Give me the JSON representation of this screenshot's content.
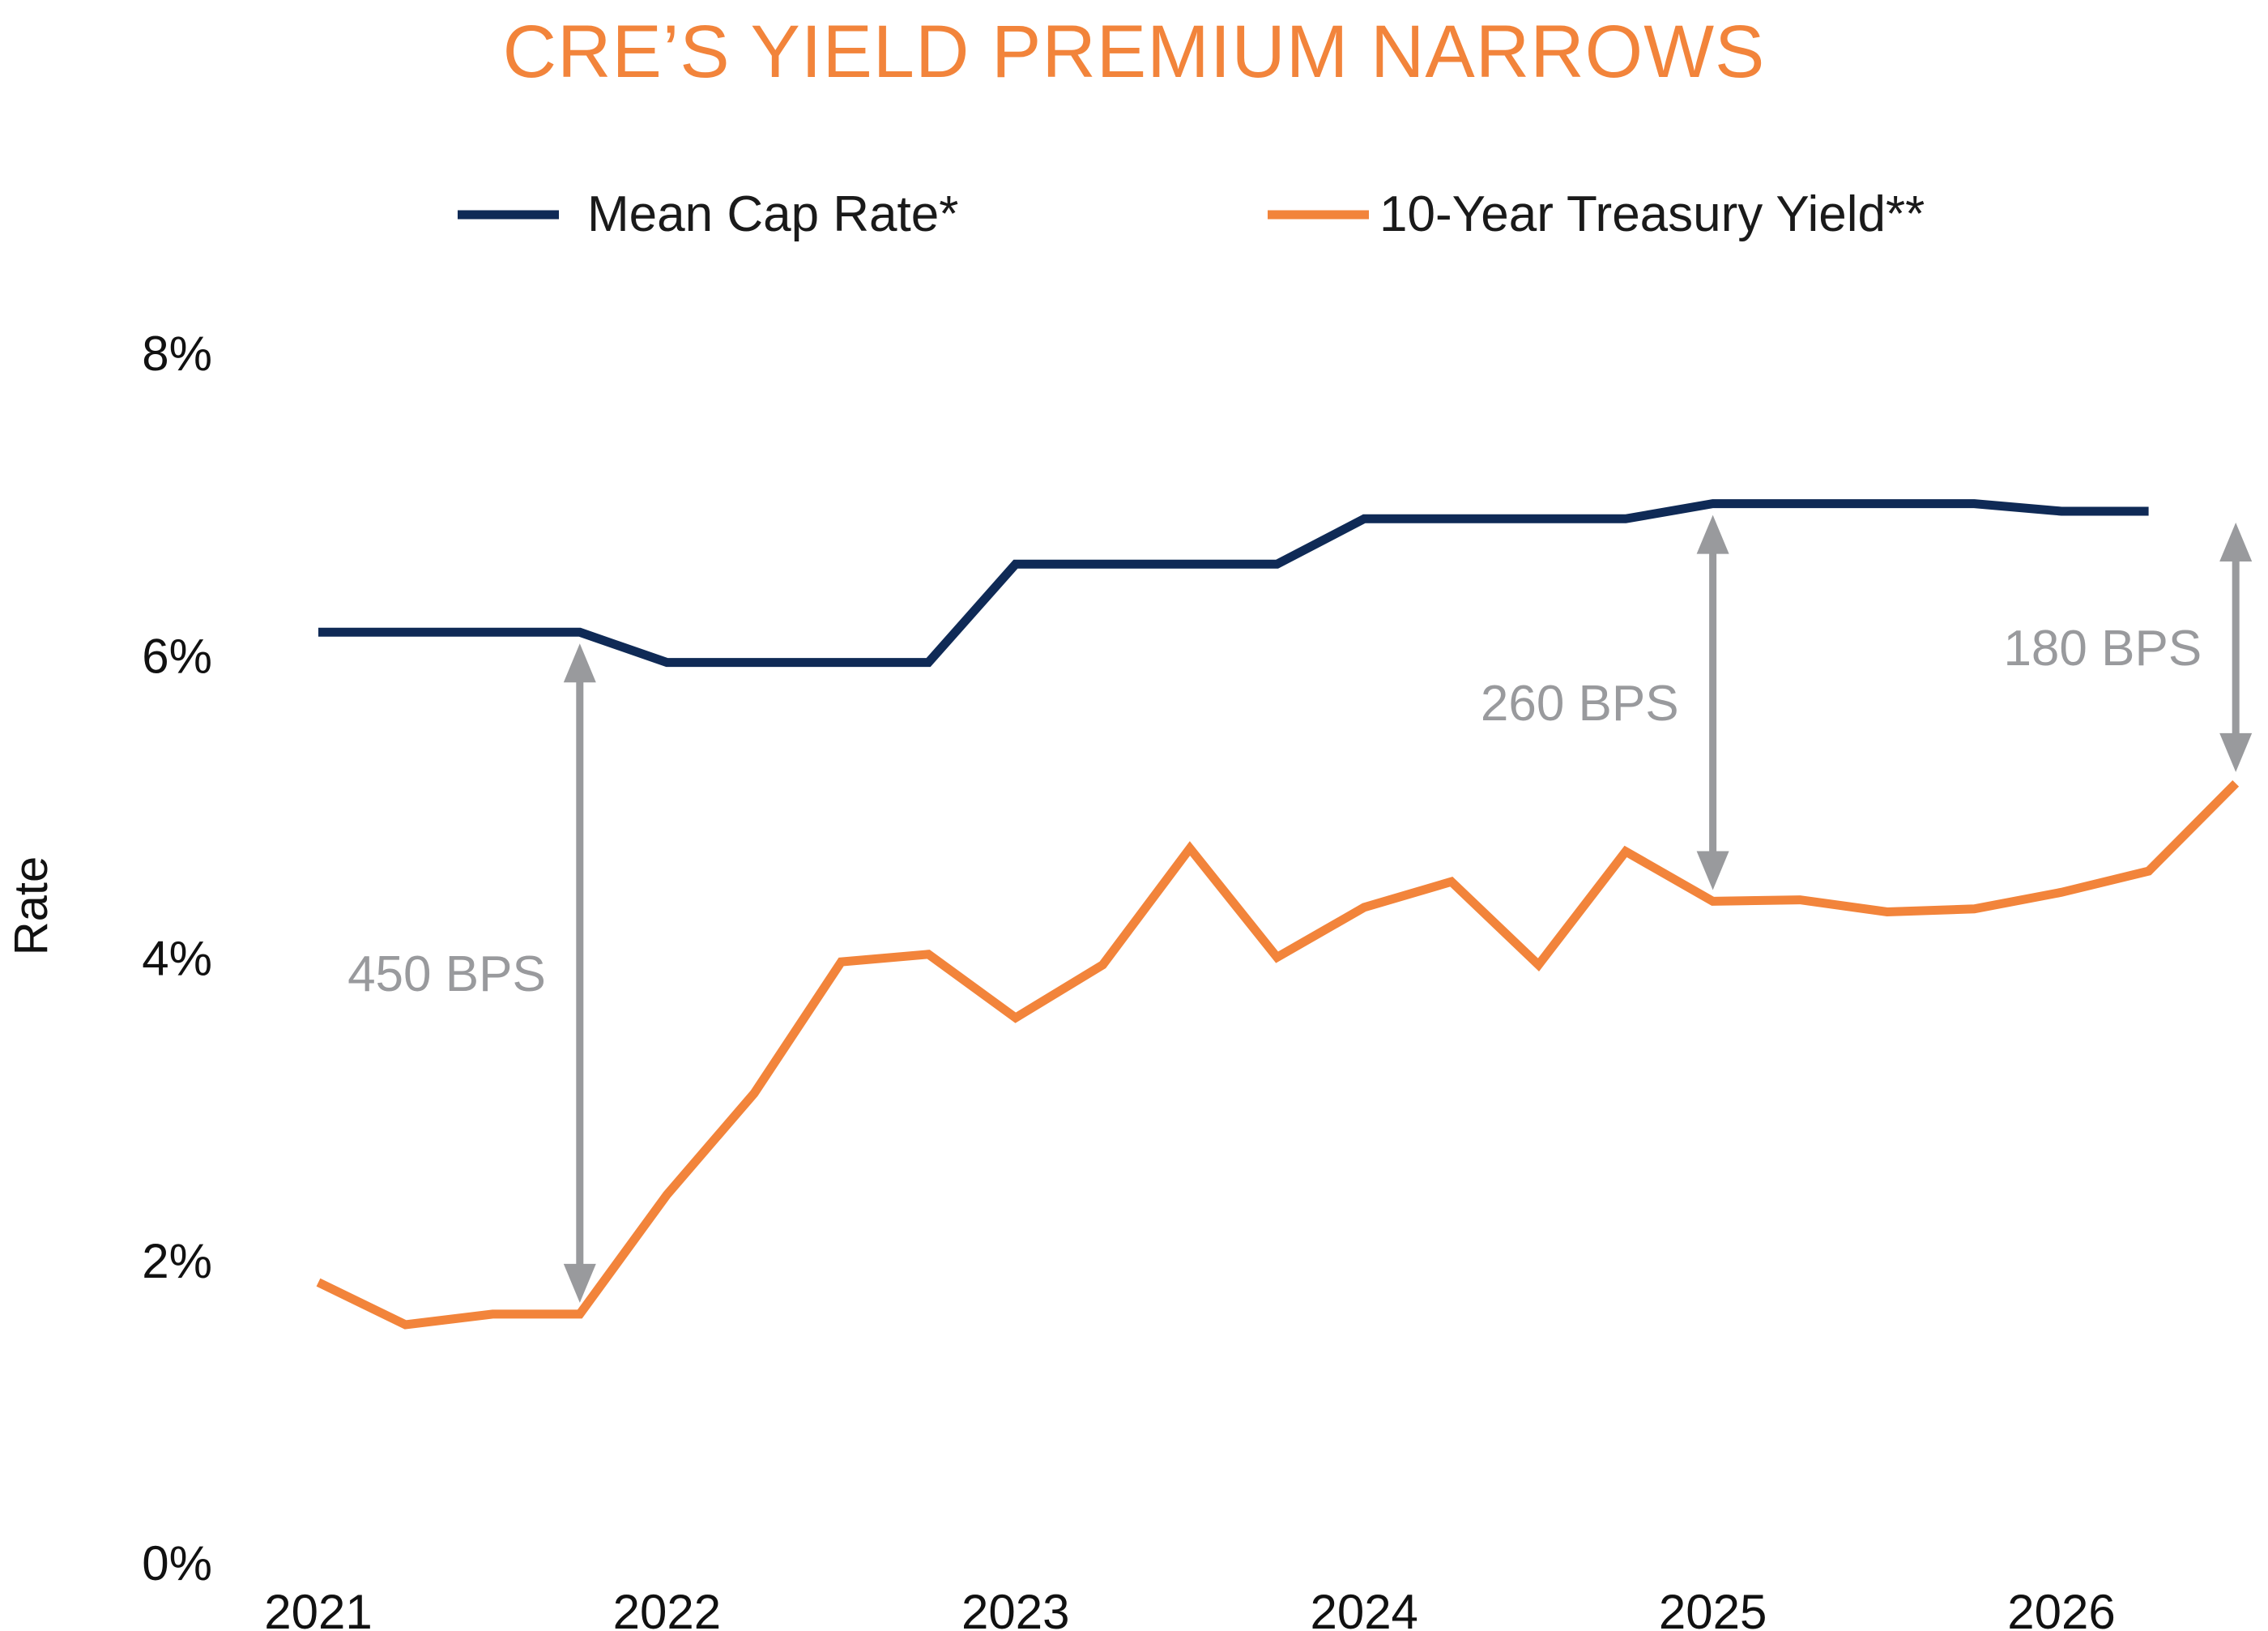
{
  "chart_data": {
    "type": "line",
    "title": "CRE’S YIELD PREMIUM NARROWS",
    "ylabel": "Rate",
    "xlabel": "",
    "ylim": [
      0,
      8
    ],
    "xlim": [
      2021,
      2026.6
    ],
    "y_ticks": [
      "0%",
      "2%",
      "4%",
      "6%",
      "8%"
    ],
    "y_tick_values": [
      0,
      2,
      4,
      6,
      8
    ],
    "x_ticks": [
      "2021",
      "2022",
      "2023",
      "2024",
      "2025",
      "2026"
    ],
    "x_tick_values": [
      2021,
      2022,
      2023,
      2024,
      2025,
      2026
    ],
    "grid": false,
    "legend_position": "top",
    "series": [
      {
        "name": "Mean Cap Rate*",
        "color": "#0f2a56",
        "x": [
          2021,
          2021.25,
          2021.5,
          2021.75,
          2022,
          2022.25,
          2022.5,
          2022.75,
          2023,
          2023.25,
          2023.5,
          2023.75,
          2024,
          2024.25,
          2024.5,
          2024.75,
          2025,
          2025.25,
          2025.5,
          2025.75,
          2026,
          2026.25
        ],
        "y": [
          6.15,
          6.15,
          6.15,
          6.15,
          5.95,
          5.95,
          5.95,
          5.95,
          6.6,
          6.6,
          6.6,
          6.6,
          6.9,
          6.9,
          6.9,
          6.9,
          7.0,
          7.0,
          7.0,
          7.0,
          6.95,
          6.95
        ]
      },
      {
        "name": "10-Year Treasury Yield**",
        "color": "#f2843b",
        "x": [
          2021,
          2021.25,
          2021.5,
          2021.75,
          2022,
          2022.25,
          2022.5,
          2022.75,
          2023,
          2023.25,
          2023.5,
          2023.75,
          2024,
          2024.25,
          2024.5,
          2024.75,
          2025,
          2025.25,
          2025.5,
          2025.75,
          2026,
          2026.25,
          2026.5
        ],
        "y": [
          1.85,
          1.57,
          1.64,
          1.64,
          2.43,
          3.1,
          3.97,
          4.02,
          3.6,
          3.95,
          4.72,
          4.0,
          4.33,
          4.5,
          3.95,
          4.7,
          4.37,
          4.38,
          4.3,
          4.32,
          4.43,
          4.57,
          5.15
        ]
      }
    ],
    "annotations": [
      {
        "text": "450 BPS",
        "x": 2021.75,
        "y_from": 1.64,
        "y_to": 6.15,
        "label_side": "left"
      },
      {
        "text": "260 BPS",
        "x": 2025,
        "y_from": 4.37,
        "y_to": 7.0,
        "label_side": "left"
      },
      {
        "text": "180 BPS",
        "x": 2026.5,
        "y_from": 5.15,
        "y_to": 6.95,
        "label_side": "left"
      }
    ]
  },
  "colors": {
    "title": "#f2843b",
    "annotation": "#999a9d",
    "text": "#111111"
  }
}
